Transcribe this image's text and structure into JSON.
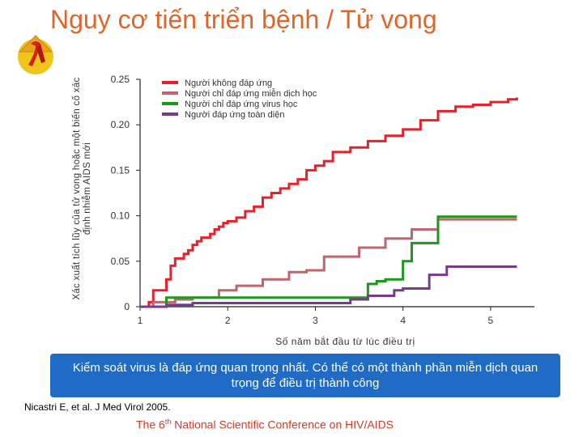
{
  "title": "Nguy cơ tiến triển bệnh / Tử vong",
  "logo_icon": "red-ribbon-conical-hat-icon",
  "banner_text": "Kiểm soát virus là đáp ứng quan trọng nhất. Có thể có một thành phần miễn dịch quan trọng để điều trị thành công",
  "citation": "Nicastri E, et al. J Med Virol 2005.",
  "footer": {
    "prefix": "The 6",
    "sup": "th",
    "rest": " National Scientific Conference on HIV/AIDS"
  },
  "chart_data": {
    "type": "line",
    "step": true,
    "xlabel": "Số năm bắt đầu từ lúc điều trị",
    "ylabel": "Xác xuất tích lũy của tử vong hoặc một biến cố xác định nhiễm AIDS mới",
    "xlim": [
      1,
      5.5
    ],
    "ylim": [
      0,
      0.25
    ],
    "x_ticks": [
      1,
      2,
      3,
      4,
      5
    ],
    "y_ticks": [
      0,
      0.05,
      0.1,
      0.15,
      0.2,
      0.25
    ],
    "y_tick_labels": [
      "0",
      "0.05",
      "0.10",
      "0.15",
      "0.20",
      "0.25"
    ],
    "grid": false,
    "legend_position": "top-left",
    "series": [
      {
        "name": "Người không đáp ứng",
        "color": "#e8202a",
        "x": [
          1,
          1.1,
          1.15,
          1.3,
          1.35,
          1.4,
          1.5,
          1.55,
          1.6,
          1.65,
          1.7,
          1.8,
          1.85,
          1.9,
          1.95,
          2.0,
          2.1,
          2.2,
          2.3,
          2.4,
          2.5,
          2.6,
          2.7,
          2.8,
          2.9,
          3.0,
          3.1,
          3.2,
          3.4,
          3.6,
          3.8,
          4.0,
          4.2,
          4.4,
          4.6,
          4.8,
          5.0,
          5.2,
          5.3
        ],
        "y": [
          0,
          0.005,
          0.018,
          0.03,
          0.045,
          0.053,
          0.058,
          0.062,
          0.068,
          0.072,
          0.076,
          0.08,
          0.085,
          0.088,
          0.092,
          0.094,
          0.098,
          0.105,
          0.11,
          0.12,
          0.125,
          0.13,
          0.135,
          0.14,
          0.15,
          0.155,
          0.16,
          0.17,
          0.175,
          0.182,
          0.188,
          0.195,
          0.205,
          0.215,
          0.22,
          0.222,
          0.225,
          0.228,
          0.23
        ]
      },
      {
        "name": "Người chỉ đáp ứng miễn dịch học",
        "color": "#c0646e",
        "x": [
          1,
          1.15,
          1.4,
          1.6,
          1.9,
          2.1,
          2.4,
          2.7,
          2.9,
          3.1,
          3.5,
          3.8,
          4.1,
          4.4,
          5.3
        ],
        "y": [
          0,
          0.005,
          0.008,
          0.01,
          0.018,
          0.023,
          0.03,
          0.038,
          0.04,
          0.055,
          0.065,
          0.075,
          0.085,
          0.096,
          0.096
        ]
      },
      {
        "name": "Người chỉ đáp ứng virus học",
        "color": "#1a9a1a",
        "x": [
          1,
          1.3,
          2.4,
          3.6,
          3.7,
          3.8,
          4.0,
          4.1,
          4.4,
          5.3
        ],
        "y": [
          0,
          0.01,
          0.01,
          0.025,
          0.028,
          0.03,
          0.05,
          0.07,
          0.099,
          0.099
        ]
      },
      {
        "name": "Người đáp ứng toàn diện",
        "color": "#7a3a8a",
        "x": [
          1,
          1.3,
          1.6,
          3.4,
          3.6,
          3.9,
          4.0,
          4.3,
          4.5,
          5.3
        ],
        "y": [
          0,
          0.002,
          0.004,
          0.008,
          0.012,
          0.018,
          0.02,
          0.035,
          0.044,
          0.044
        ]
      }
    ]
  }
}
